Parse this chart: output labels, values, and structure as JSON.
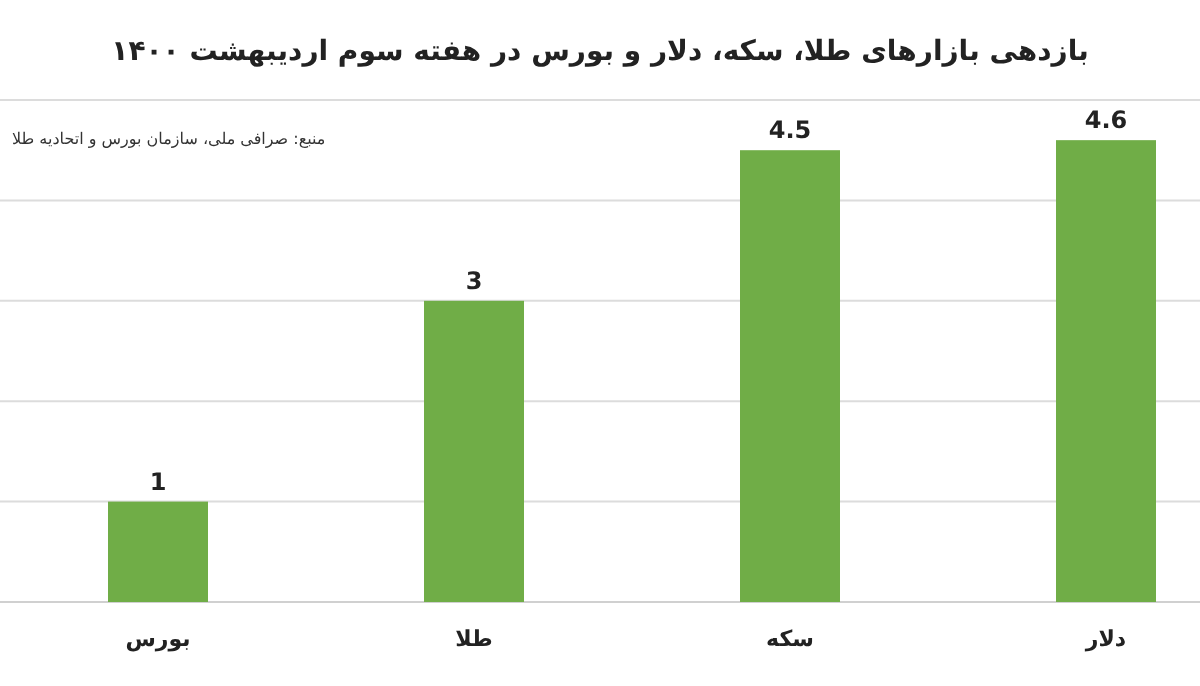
{
  "chart_data": {
    "type": "bar",
    "title": "بازدهی بازارهای طلا، سکه، دلار و بورس در هفته سوم اردیبهشت ۱۴۰۰",
    "categories": [
      "بورس",
      "طلا",
      "سکه",
      "دلار"
    ],
    "values": [
      1,
      3,
      4.5,
      4.6
    ],
    "color": "#70ad47",
    "grid": "y",
    "data_labels": true,
    "tick_labels": "x",
    "annotations": [
      "منبع: صرافی ملی، سازمان بورس و اتحادیه طلا"
    ]
  }
}
